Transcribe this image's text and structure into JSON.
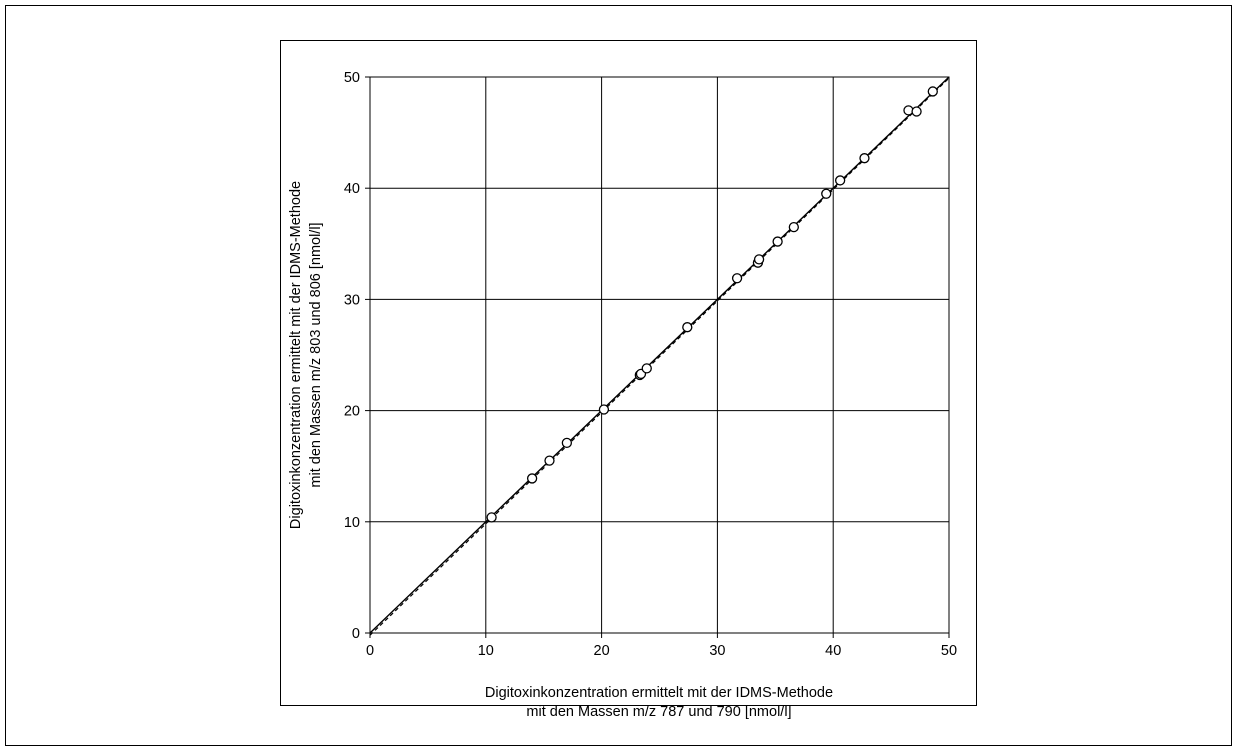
{
  "chart_data": {
    "type": "scatter",
    "title": "",
    "xlabel": [
      "Digitoxinkonzentration ermittelt mit der IDMS-Methode",
      "mit den Massen m/z 787 und 790 [nmol/l]"
    ],
    "ylabel": [
      "Digitoxinkonzentration ermittelt mit der IDMS-Methode",
      "mit den Massen m/z 803 und 806 [nmol/l]"
    ],
    "xlim": [
      0,
      50
    ],
    "ylim": [
      0,
      50
    ],
    "xticks": [
      "0",
      "10",
      "20",
      "30",
      "40",
      "50"
    ],
    "yticks": [
      "0",
      "10",
      "20",
      "30",
      "40",
      "50"
    ],
    "grid": true,
    "points": {
      "x": [
        10.5,
        14.0,
        15.5,
        17.0,
        20.2,
        23.3,
        23.4,
        23.9,
        27.4,
        31.7,
        33.5,
        33.6,
        35.2,
        36.6,
        39.4,
        40.6,
        42.7,
        46.5,
        47.2,
        48.6
      ],
      "y": [
        10.4,
        13.9,
        15.5,
        17.1,
        20.1,
        23.2,
        23.3,
        23.8,
        27.5,
        31.9,
        33.3,
        33.6,
        35.2,
        36.5,
        39.5,
        40.7,
        42.7,
        47.0,
        46.9,
        48.7
      ]
    },
    "lines": [
      {
        "x": [
          0,
          50
        ],
        "y": [
          0,
          50
        ],
        "style": "solid"
      },
      {
        "x": [
          0,
          50
        ],
        "y": [
          -0.2,
          49.9
        ],
        "style": "dashed"
      }
    ],
    "marker": "open-circle"
  }
}
